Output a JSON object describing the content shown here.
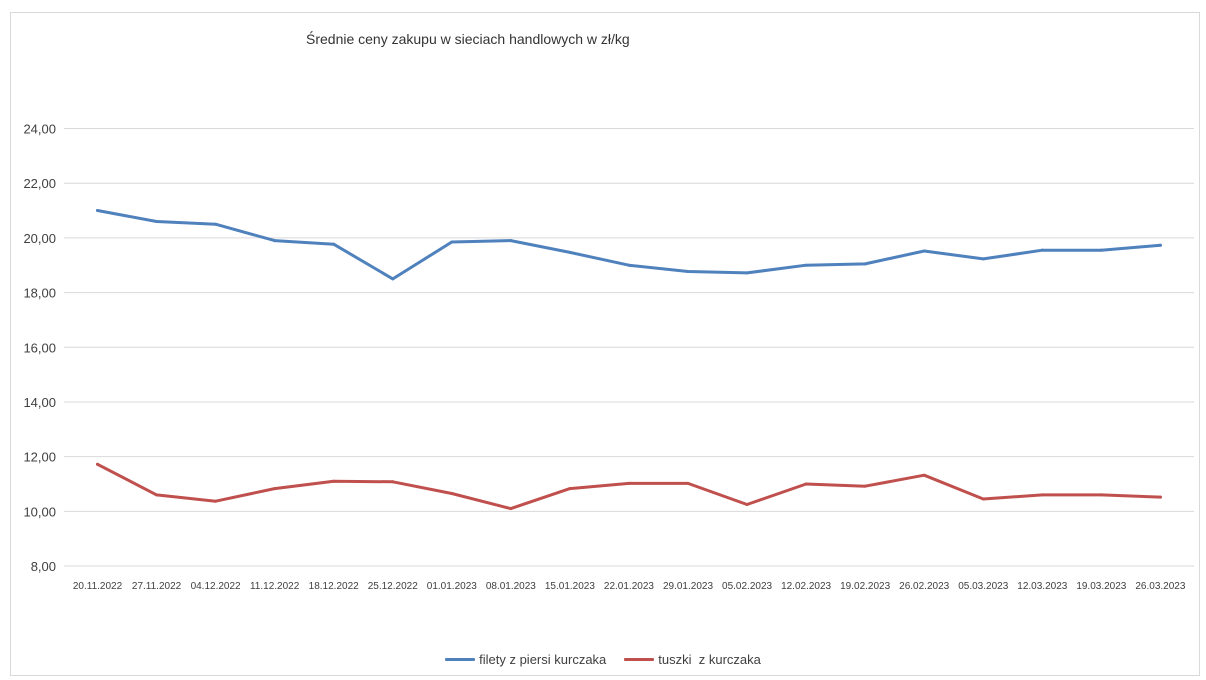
{
  "chart_data": {
    "type": "line",
    "title": "Średnie ceny zakupu w sieciach handlowych w zł/kg",
    "xlabel": "",
    "ylabel": "",
    "ylim": [
      8,
      24
    ],
    "yticks": [
      "8,00",
      "10,00",
      "12,00",
      "14,00",
      "16,00",
      "18,00",
      "20,00",
      "22,00",
      "24,00"
    ],
    "grid": true,
    "legend_position": "bottom",
    "categories": [
      "20.11.2022",
      "27.11.2022",
      "04.12.2022",
      "11.12.2022",
      "18.12.2022",
      "25.12.2022",
      "01.01.2023",
      "08.01.2023",
      "15.01.2023",
      "22.01.2023",
      "29.01.2023",
      "05.02.2023",
      "12.02.2023",
      "19.02.2023",
      "26.02.2023",
      "05.03.2023",
      "12.03.2023",
      "19.03.2023",
      "26.03.2023"
    ],
    "series": [
      {
        "name": "filety z piersi kurczaka",
        "color": "#4F81BD",
        "values": [
          21.0,
          20.6,
          20.5,
          19.9,
          19.77,
          18.5,
          19.85,
          19.9,
          19.47,
          19.0,
          18.77,
          18.72,
          19.0,
          19.05,
          19.52,
          19.23,
          19.55,
          19.55,
          19.73
        ]
      },
      {
        "name": "tuszki  z kurczaka",
        "color": "#C0504D",
        "values": [
          11.72,
          10.6,
          10.37,
          10.83,
          11.1,
          11.08,
          10.65,
          10.1,
          10.83,
          11.02,
          11.02,
          10.25,
          11.0,
          10.92,
          11.32,
          10.45,
          10.6,
          10.6,
          10.52
        ]
      }
    ]
  }
}
